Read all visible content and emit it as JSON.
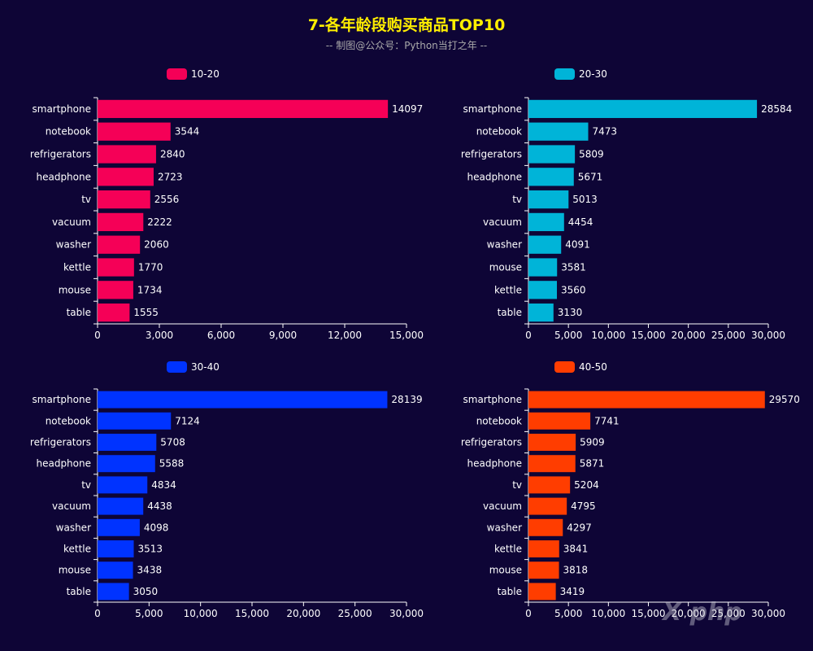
{
  "title": "7-各年龄段购买商品TOP10",
  "subtitle": "-- 制图@公众号：Python当打之年 --",
  "chart_data": [
    {
      "type": "bar",
      "orientation": "horizontal",
      "legend": "10-20",
      "color": "#f50057",
      "xlim": [
        0,
        15000
      ],
      "ticks": [
        "0",
        "3,000",
        "6,000",
        "9,000",
        "12,000",
        "15,000"
      ],
      "categories": [
        "smartphone",
        "notebook",
        "refrigerators",
        "headphone",
        "tv",
        "vacuum",
        "washer",
        "kettle",
        "mouse",
        "table"
      ],
      "values": [
        14097,
        3544,
        2840,
        2723,
        2556,
        2222,
        2060,
        1770,
        1734,
        1555
      ]
    },
    {
      "type": "bar",
      "orientation": "horizontal",
      "legend": "20-30",
      "color": "#00b4d8",
      "xlim": [
        0,
        30000
      ],
      "ticks": [
        "0",
        "5,000",
        "10,000",
        "15,000",
        "20,000",
        "25,000",
        "30,000"
      ],
      "categories": [
        "smartphone",
        "notebook",
        "refrigerators",
        "headphone",
        "tv",
        "vacuum",
        "washer",
        "mouse",
        "kettle",
        "table"
      ],
      "values": [
        28584,
        7473,
        5809,
        5671,
        5013,
        4454,
        4091,
        3581,
        3560,
        3130
      ]
    },
    {
      "type": "bar",
      "orientation": "horizontal",
      "legend": "30-40",
      "color": "#0033ff",
      "xlim": [
        0,
        30000
      ],
      "ticks": [
        "0",
        "5,000",
        "10,000",
        "15,000",
        "20,000",
        "25,000",
        "30,000"
      ],
      "categories": [
        "smartphone",
        "notebook",
        "refrigerators",
        "headphone",
        "tv",
        "vacuum",
        "washer",
        "kettle",
        "mouse",
        "table"
      ],
      "values": [
        28139,
        7124,
        5708,
        5588,
        4834,
        4438,
        4098,
        3513,
        3438,
        3050
      ]
    },
    {
      "type": "bar",
      "orientation": "horizontal",
      "legend": "40-50",
      "color": "#ff3d00",
      "xlim": [
        0,
        30000
      ],
      "ticks": [
        "0",
        "5,000",
        "10,000",
        "15,000",
        "20,000",
        "25,000",
        "30,000"
      ],
      "categories": [
        "smartphone",
        "notebook",
        "refrigerators",
        "headphone",
        "tv",
        "vacuum",
        "washer",
        "kettle",
        "mouse",
        "table"
      ],
      "values": [
        29570,
        7741,
        5909,
        5871,
        5204,
        4795,
        4297,
        3841,
        3818,
        3419
      ]
    }
  ]
}
